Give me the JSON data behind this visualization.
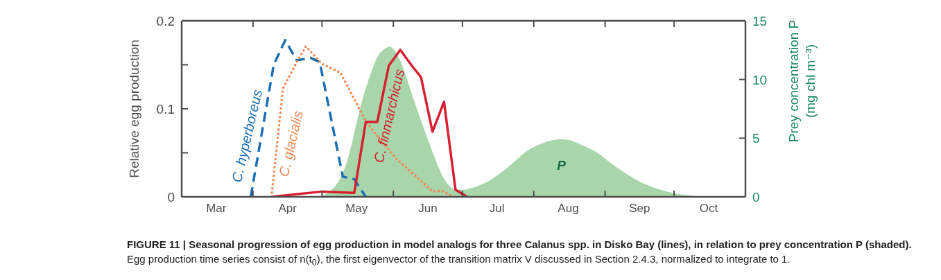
{
  "chart_data": {
    "type": "line",
    "ylabel": "Relative egg production",
    "y2label": "Prey concentration P\n(mg chl m⁻³)",
    "xlim": [
      "--03-01",
      "--11-01"
    ],
    "xticks": [
      {
        "value": "--03-16",
        "label": "Mar"
      },
      {
        "value": "--04-01",
        "label": null
      },
      {
        "value": "--04-16",
        "label": "Apr"
      },
      {
        "value": "--05-01",
        "label": null
      },
      {
        "value": "--05-16",
        "label": "May"
      },
      {
        "value": "--06-01",
        "label": null
      },
      {
        "value": "--06-16",
        "label": "Jun"
      },
      {
        "value": "--07-01",
        "label": null
      },
      {
        "value": "--07-16",
        "label": "Jul"
      },
      {
        "value": "--08-01",
        "label": null
      },
      {
        "value": "--08-16",
        "label": "Aug"
      },
      {
        "value": "--09-01",
        "label": null
      },
      {
        "value": "--09-16",
        "label": "Sep"
      },
      {
        "value": "--10-01",
        "label": null
      },
      {
        "value": "--10-16",
        "label": "Oct"
      }
    ],
    "ylim": [
      0,
      0.2
    ],
    "yticks": [
      0,
      {
        "value": 0.05,
        "label": null
      },
      0.1,
      {
        "value": 0.15,
        "label": null
      },
      0.2
    ],
    "y2lim": [
      0,
      15
    ],
    "y2ticks": [
      0,
      5,
      10,
      15
    ],
    "marker": "none",
    "annotations": [
      "FIGURE 11 | Seasonal progression of egg production in model analogs for three Calanus spp. in Disko Bay (lines), in relation to prey concentration P (shaded).",
      "Egg production time series consist of n(t$_{0}$), the first eigenvector of the transition matrix V discussed in Section 2.4.3, normalized to integrate to 1."
    ],
    "series": [
      {
        "name": "P",
        "type": "area",
        "axis": "y2",
        "color": "#a8d5aa",
        "x": [
          "--04-19",
          "--04-25",
          "--05-01",
          "--05-04",
          "--05-07",
          "--05-10",
          "--05-13",
          "--05-16",
          "--05-19",
          "--05-22",
          "--05-25",
          "--05-29",
          "--05-30",
          "--06-01",
          "--06-04",
          "--06-07",
          "--06-10",
          "--06-13",
          "--06-16",
          "--06-19",
          "--06-22",
          "--06-25",
          "--06-28",
          "--07-01",
          "--07-04",
          "--07-10",
          "--07-16",
          "--07-23",
          "--07-29",
          "--08-04",
          "--08-10",
          "--08-13",
          "--08-16",
          "--08-22",
          "--08-29",
          "--09-04",
          "--09-10",
          "--09-16",
          "--09-22",
          "--09-28",
          "--10-04",
          "--10-10",
          "--10-16",
          "--10-22"
        ],
        "values": [
          0,
          0.02,
          0.1,
          0.4,
          1.0,
          2.0,
          3.8,
          6.3,
          8.6,
          10.4,
          11.9,
          12.7,
          12.8,
          12.6,
          11.6,
          10.0,
          8.2,
          6.5,
          4.9,
          3.3,
          1.9,
          1.0,
          0.6,
          0.6,
          0.7,
          1.1,
          1.8,
          2.9,
          3.9,
          4.5,
          4.85,
          4.9,
          4.85,
          4.4,
          3.7,
          2.8,
          2.0,
          1.3,
          0.8,
          0.45,
          0.2,
          0.08,
          0.02,
          0
        ]
      },
      {
        "name": "C. hyperboreus",
        "line_style": "dashed",
        "color": "#1a6fb5",
        "x": [
          "--03-31",
          "--04-10",
          "--04-15",
          "--04-20",
          "--04-26",
          "--04-30",
          "--05-10",
          "--05-15",
          "--05-20"
        ],
        "values": [
          0,
          0.15,
          0.178,
          0.155,
          0.158,
          0.153,
          0.023,
          0.02,
          0
        ]
      },
      {
        "name": "C. glacialis",
        "line_style": "dotted",
        "color": "#ef8a55",
        "x": [
          "--04-09",
          "--04-14",
          "--04-20",
          "--04-24",
          "--05-01",
          "--05-09",
          "--05-20",
          "--05-25",
          "--06-02",
          "--06-11",
          "--06-18",
          "--06-22",
          "--06-27"
        ],
        "values": [
          0,
          0.123,
          0.153,
          0.171,
          0.151,
          0.141,
          0.086,
          0.069,
          0.044,
          0.023,
          0.006,
          0.007,
          0
        ]
      },
      {
        "name": "C. finmarchicus",
        "line_style": "solid",
        "color": "#d61f30",
        "x": [
          "--04-09",
          "--05-01",
          "--05-15",
          "--05-20",
          "--05-25",
          "--05-30",
          "--06-04",
          "--06-09",
          "--06-13",
          "--06-18",
          "--06-23",
          "--06-28",
          "--07-03"
        ],
        "values": [
          0,
          0.006,
          0.0045,
          0.085,
          0.085,
          0.149,
          0.167,
          0.149,
          0.136,
          0.074,
          0.108,
          0.008,
          0
        ]
      }
    ]
  }
}
